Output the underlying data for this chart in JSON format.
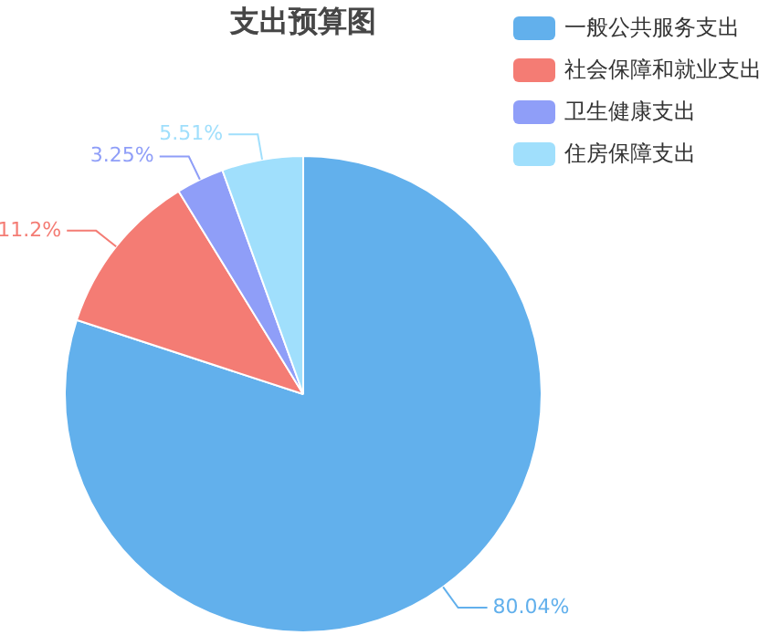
{
  "chart_data": {
    "type": "pie",
    "title": "支出预算图",
    "categories": [
      "一般公共服务支出",
      "社会保障和就业支出",
      "卫生健康支出",
      "住房保障支出"
    ],
    "values": [
      80.04,
      11.2,
      3.25,
      5.51
    ],
    "colors": [
      "#62b0ec",
      "#f47c74",
      "#8f9ef8",
      "#a0dffc"
    ],
    "value_labels": [
      "80.04%",
      "11.2%",
      "3.25%",
      "5.51%"
    ],
    "legend": "top right"
  }
}
